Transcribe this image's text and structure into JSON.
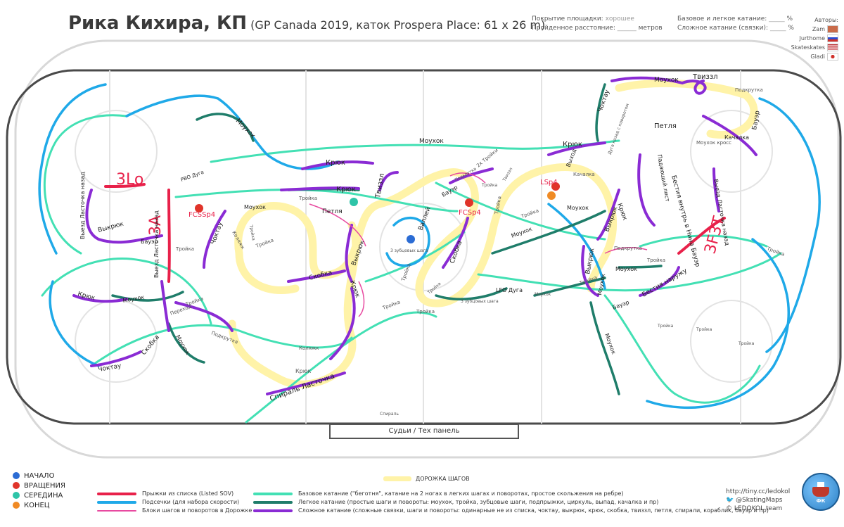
{
  "header": {
    "title": "Рика Кихира, КП",
    "subtitle": "(GP Canada 2019, каток Prospera Place: 61 x 26 m)",
    "coverage_label": "Покрытие площадки:",
    "coverage_value": "хорошее",
    "distance_label": "Пройденное расстояние:",
    "distance_blank": "______",
    "distance_unit": "метров",
    "basic_label": "Базовое и легкое катание:",
    "basic_blank": "_____",
    "complex_label": "Сложное катание (связки):",
    "complex_blank": "_____",
    "percent": "%"
  },
  "authors": {
    "title": "Авторы:",
    "names": [
      "Zam",
      "Jurthome",
      "Skateskates",
      "Gladi"
    ],
    "flags": [
      "chef-hat-icon",
      "russia-flag-icon",
      "usa-flag-icon",
      "japan-flag-icon"
    ]
  },
  "rink": {
    "labels": [
      "Моухок",
      "Моухок",
      "Твиззл",
      "Подкрутка",
      "Чоктау",
      "Дуга назад с поворотом",
      "Петля",
      "Моухок кросс",
      "Качалка",
      "Бауэр",
      "Крюк",
      "Моухок",
      "Крюк",
      "Крюк",
      "Твиззл",
      "Бауэр",
      "Подкрутка",
      "2х Тройки",
      "Тройка",
      "РВО Дуга",
      "Выезд Ласточка назад",
      "Выкрюк",
      "Бауэр",
      "Тройка",
      "Чоктау",
      "Моухок",
      "Тройка",
      "Петля",
      "Выкрюк",
      "Скобка",
      "Крюк",
      "Коляжк",
      "Тройка",
      "Тройка",
      "Валлей",
      "3 зубцовых шага",
      "Тройка",
      "Скобка",
      "Твиззл",
      "Тройка",
      "Крюк",
      "Моухок",
      "Выкрюк",
      "Тройка",
      "Выкрюк",
      "Моухок",
      "Тройка",
      "Моухок",
      "Тройка",
      "Выход",
      "Падающий лист",
      "Бестия внутрь в Нина Бауэр",
      "Выезд Ласточка назад",
      "Подкрутка",
      "Тройка",
      "Моухок",
      "Бестия наружу",
      "Бауэр",
      "Моухок",
      "Тройка",
      "LFO Дуга",
      "3 зубцовых шага",
      "Тройка",
      "Тройка",
      "Выезд Ласточка назад",
      "Крюк",
      "Моухок",
      "Переход",
      "Подкрутка",
      "Чоктау",
      "Скобка",
      "Моухок",
      "Крюк",
      "Коляжк",
      "Спираль Ласточка",
      "Тройка",
      "Моухок",
      "Тройка",
      "Тройка",
      "Тройка",
      "Качалка",
      "Спираль"
    ],
    "jumps": [
      "3Lo",
      "3A",
      "3F3T"
    ],
    "spins": [
      "FCSSp4",
      "FCSp4",
      "LSp4"
    ],
    "judges_label": "Судьи / Тех панель"
  },
  "legend": {
    "markers": [
      {
        "label": "НАЧАЛО",
        "color": "#2b6cd4"
      },
      {
        "label": "ВРАЩЕНИЯ",
        "color": "#e0342a"
      },
      {
        "label": "СЕРЕДИНА",
        "color": "#2ec4a8"
      },
      {
        "label": "КОНЕЦ",
        "color": "#f08a24"
      }
    ],
    "step_sequence": "ДОРОЖКА ШАГОВ",
    "lines_left": [
      {
        "label": "Прыжки из списка (Listed SOV)",
        "color": "#e8214a"
      },
      {
        "label": "Подсечки (для набора скорости)",
        "color": "#1fa9e8"
      },
      {
        "label": "Блоки шагов и поворотов в Дорожке",
        "color": "#e84aa0"
      }
    ],
    "lines_right": [
      {
        "label": "Базовое катание (\"беготня\", катание на 2 ногах в легких шагах и поворотах, простое скольжения на ребре)",
        "color": "#43e0b4"
      },
      {
        "label": "Легкое катание (простые шаги и повороты: моухок, тройка, зубцовые шаги, подпрыжки, циркуль, выпад, качалка и пр)",
        "color": "#1f7d6a"
      },
      {
        "label": "Сложное катание (сложные связки, шаги и повороты:  одинарные не из списка, чоктау, выкрюк, крюк, скобка, твиззл, петля, спирали, кораблик, бауэр и пр)",
        "color": "#8a2bd4"
      }
    ]
  },
  "credits": {
    "url": "http://tiny.cc/ledokol",
    "twitter": "@SkatingMaps",
    "team": "LEDOKOL team"
  }
}
